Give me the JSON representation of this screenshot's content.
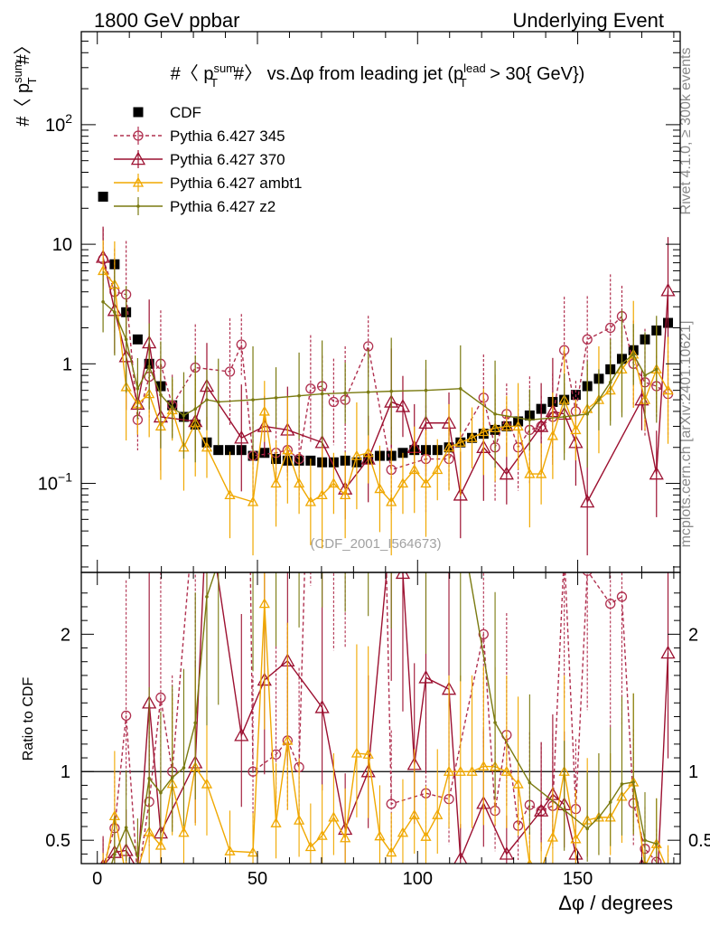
{
  "header": {
    "left": "1800 GeV ppbar",
    "right": "Underlying Event"
  },
  "side_labels": {
    "rivet": "Rivet 4.1.0, ≥ 300k events",
    "mcplots": "mcplots.cern.ch [arXiv:2401.10621]"
  },
  "watermark": "(CDF_2001_I564673)",
  "colors": {
    "cdf": "#000000",
    "p345": "#b0304f",
    "p370": "#9c1030",
    "ambt1": "#f0a800",
    "z2": "#7a7a10"
  },
  "chart_data": [
    {
      "type": "scatter",
      "panel": "main",
      "title": "#〈 p_T^sum#〉 vs.Δφ from leading jet  (p_T^lead > 30{ GeV})",
      "title_parts": {
        "prefix": "#〈 p",
        "sup1": "sum",
        "sub1": "T",
        "mid": "#〉 vs.Δφ from leading jet  (p",
        "sup2": "lead",
        "sub2": "T",
        "suffix": " > 30{ GeV})"
      },
      "ylabel": "#〈 p_T^sum#〉",
      "ylabel_parts": {
        "prefix": "#〈 p",
        "sup": "sum",
        "sub": "T",
        "suffix": "#〉"
      },
      "yscale": "log",
      "ylim": [
        0.018,
        600
      ],
      "xlim": [
        -5,
        182
      ],
      "y_ticks": [
        {
          "value": 0.1,
          "label": "10",
          "exp": "−1"
        },
        {
          "value": 1,
          "label": "1",
          "exp": ""
        },
        {
          "value": 10,
          "label": "10",
          "exp": ""
        },
        {
          "value": 100,
          "label": "10",
          "exp": "2"
        }
      ],
      "legend_position": "top-left",
      "series": [
        {
          "name": "CDF",
          "key": "cdf",
          "marker": "square",
          "x": [
            1.8,
            5.4,
            9,
            12.6,
            16.2,
            19.8,
            23.4,
            27,
            30.6,
            34.2,
            37.8,
            41.4,
            45,
            48.6,
            52.2,
            55.8,
            59.4,
            63,
            66.6,
            70.2,
            73.8,
            77.4,
            81,
            84.6,
            88.2,
            91.8,
            95.4,
            99,
            102.6,
            106.2,
            109.8,
            113.4,
            117,
            120.6,
            124.2,
            127.8,
            131.4,
            135,
            138.6,
            142.2,
            145.8,
            149.4,
            153,
            156.6,
            160.2,
            163.8,
            167.4,
            171,
            174.6,
            178.2
          ],
          "y": [
            25,
            6.8,
            2.7,
            1.6,
            1.0,
            0.65,
            0.45,
            0.36,
            0.31,
            0.22,
            0.19,
            0.19,
            0.19,
            0.17,
            0.18,
            0.16,
            0.155,
            0.155,
            0.155,
            0.15,
            0.15,
            0.155,
            0.15,
            0.16,
            0.17,
            0.17,
            0.18,
            0.19,
            0.19,
            0.19,
            0.2,
            0.22,
            0.24,
            0.26,
            0.28,
            0.3,
            0.33,
            0.37,
            0.42,
            0.48,
            0.5,
            0.55,
            0.65,
            0.75,
            0.9,
            1.1,
            1.3,
            1.6,
            1.9,
            2.2
          ]
        },
        {
          "name": "Pythia 6.427 345",
          "key": "p345",
          "marker": "circle",
          "dashed": true,
          "x": [
            1.8,
            5.4,
            9,
            12.6,
            16.2,
            19.8,
            23.4,
            30.6,
            41.4,
            45,
            48.6,
            55.8,
            59.4,
            63,
            66.6,
            70.2,
            73.8,
            77.4,
            84.6,
            91.8,
            102.6,
            109.8,
            120.6,
            124.2,
            127.8,
            131.4,
            135,
            138.6,
            142.2,
            145.8,
            149.4,
            153,
            160.2,
            163.8,
            167.4,
            171,
            174.6,
            178.2
          ],
          "y": [
            7.5,
            4.0,
            3.8,
            0.34,
            0.78,
            1.0,
            0.45,
            0.93,
            0.86,
            1.45,
            0.17,
            0.18,
            0.19,
            0.16,
            0.62,
            0.65,
            0.48,
            0.5,
            1.4,
            0.13,
            0.16,
            0.16,
            0.52,
            0.2,
            0.38,
            0.2,
            0.28,
            0.3,
            0.36,
            1.3,
            0.4,
            1.6,
            2.0,
            2.5,
            1.0,
            0.7,
            0.65,
            0.56
          ]
        },
        {
          "name": "Pythia 6.427 370",
          "key": "p370",
          "marker": "triangle-open",
          "x": [
            1.8,
            5.4,
            9,
            12.6,
            16.2,
            19.8,
            30.6,
            34.2,
            45,
            52.2,
            59.4,
            70.2,
            77.4,
            84.6,
            91.8,
            95.4,
            99,
            102.6,
            109.8,
            113.4,
            120.6,
            127.8,
            138.6,
            142.2,
            145.8,
            149.4,
            153,
            170,
            174.6,
            178.2
          ],
          "y": [
            7.8,
            2.8,
            1.15,
            0.46,
            1.5,
            0.36,
            0.33,
            0.65,
            0.24,
            0.3,
            0.28,
            0.22,
            0.09,
            0.16,
            0.48,
            0.44,
            0.2,
            0.32,
            0.32,
            0.08,
            0.2,
            0.12,
            0.3,
            0.4,
            0.38,
            0.22,
            0.07,
            0.5,
            0.12,
            4.1
          ]
        },
        {
          "name": "Pythia 6.427 ambt1",
          "key": "ambt1",
          "marker": "triangle-open",
          "x": [
            1.8,
            5.4,
            9,
            12.6,
            16.2,
            19.8,
            23.4,
            27,
            30.6,
            34.2,
            41.4,
            48.6,
            52.2,
            55.8,
            59.4,
            63,
            66.6,
            70.2,
            73.8,
            77.4,
            81,
            84.6,
            88.2,
            91.8,
            95.4,
            99,
            102.6,
            106.2,
            109.8,
            113.4,
            117,
            120.6,
            124.2,
            127.8,
            131.4,
            135,
            138.6,
            142.2,
            145.8,
            149.4,
            153,
            156.6,
            160.2,
            163.8,
            167.4,
            171,
            174.6,
            178.2
          ],
          "y": [
            6.0,
            4.6,
            0.64,
            0.46,
            0.56,
            0.3,
            0.41,
            0.2,
            0.32,
            0.2,
            0.08,
            0.07,
            0.4,
            0.1,
            0.19,
            0.1,
            0.07,
            0.08,
            0.1,
            0.08,
            0.17,
            0.18,
            0.09,
            0.07,
            0.1,
            0.13,
            0.1,
            0.13,
            0.2,
            0.22,
            0.24,
            0.27,
            0.29,
            0.3,
            0.3,
            0.12,
            0.12,
            0.25,
            0.5,
            0.28,
            0.42,
            0.5,
            0.6,
            0.9,
            1.2,
            0.5,
            0.9,
            0.6
          ]
        },
        {
          "name": "Pythia 6.427 z2",
          "key": "z2",
          "marker": "dot",
          "x": [
            1.8,
            5.4,
            9,
            12.6,
            16.2,
            19.8,
            23.4,
            27,
            30.6,
            34.2,
            37.8,
            48.6,
            55.8,
            63,
            70.2,
            77.4,
            84.6,
            91.8,
            102.6,
            113.4,
            124.2,
            135,
            145.8,
            153,
            156.6,
            160.2,
            163.8,
            167.4,
            171,
            174.6
          ],
          "y": [
            3.3,
            2.7,
            1.6,
            0.62,
            0.95,
            0.55,
            0.43,
            0.37,
            0.42,
            0.5,
            0.48,
            0.5,
            0.52,
            0.54,
            0.56,
            0.57,
            0.58,
            0.59,
            0.6,
            0.62,
            0.38,
            0.34,
            0.36,
            0.38,
            0.5,
            0.7,
            1.0,
            1.2,
            0.8,
            0.9
          ]
        }
      ]
    },
    {
      "type": "line",
      "panel": "ratio",
      "ylabel": "Ratio to CDF",
      "xlabel": "Δφ / degrees",
      "ylim": [
        0.33,
        2.45
      ],
      "xlim": [
        -5,
        182
      ],
      "x_ticks": [
        0,
        50,
        100,
        150
      ],
      "y_ticks": [
        0.5,
        1,
        2
      ],
      "reference_line": 1
    }
  ]
}
